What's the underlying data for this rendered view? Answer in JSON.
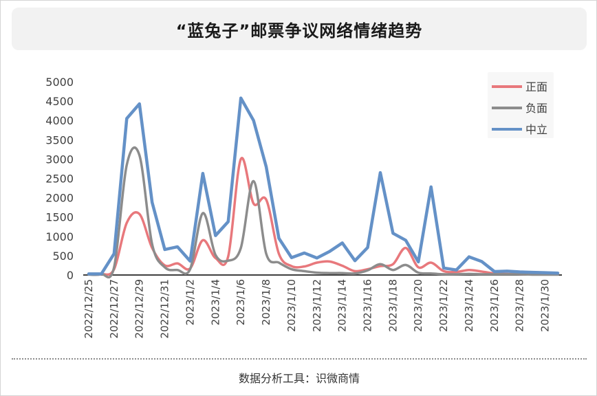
{
  "title": "“蓝兔子”邮票争议网络情绪趋势",
  "footer": "数据分析工具：识微商情",
  "chart_data": {
    "type": "line",
    "title": "“蓝兔子”邮票争议网络情绪趋势",
    "xlabel": "",
    "ylabel": "",
    "ylim": [
      0,
      5000
    ],
    "yticks": [
      0,
      500,
      1000,
      1500,
      2000,
      2500,
      3000,
      3500,
      4000,
      4500,
      5000
    ],
    "grid": false,
    "legend_position": "top-right",
    "x": [
      "2022/12/25",
      "2022/12/26",
      "2022/12/27",
      "2022/12/28",
      "2022/12/29",
      "2022/12/30",
      "2022/12/31",
      "2023/1/1",
      "2023/1/2",
      "2023/1/3",
      "2023/1/4",
      "2023/1/5",
      "2023/1/6",
      "2023/1/7",
      "2023/1/8",
      "2023/1/9",
      "2023/1/10",
      "2023/1/11",
      "2023/1/12",
      "2023/1/13",
      "2023/1/14",
      "2023/1/15",
      "2023/1/16",
      "2023/1/17",
      "2023/1/18",
      "2023/1/19",
      "2023/1/20",
      "2023/1/21",
      "2023/1/22",
      "2023/1/23",
      "2023/1/24",
      "2023/1/25",
      "2023/1/26",
      "2023/1/27",
      "2023/1/28",
      "2023/1/29",
      "2023/1/30",
      "2023/1/31"
    ],
    "xtick_labels": [
      "2022/12/25",
      "2022/12/27",
      "2022/12/29",
      "2022/12/31",
      "2023/1/2",
      "2023/1/4",
      "2023/1/6",
      "2023/1/8",
      "2023/1/10",
      "2023/1/12",
      "2023/1/14",
      "2023/1/16",
      "2023/1/18",
      "2023/1/20",
      "2023/1/22",
      "2023/1/24",
      "2023/1/26",
      "2023/1/28",
      "2023/1/30"
    ],
    "series": [
      {
        "name": "正面",
        "color": "#e8787c",
        "smooth": true,
        "values": [
          20,
          20,
          150,
          1350,
          1580,
          700,
          250,
          300,
          170,
          900,
          440,
          480,
          3000,
          1850,
          1950,
          550,
          230,
          220,
          320,
          350,
          240,
          100,
          150,
          230,
          280,
          700,
          200,
          320,
          100,
          80,
          130,
          90,
          40,
          30,
          20,
          20,
          20,
          20
        ]
      },
      {
        "name": "负面",
        "color": "#8c8c8c",
        "smooth": true,
        "values": [
          10,
          20,
          200,
          2850,
          3100,
          800,
          200,
          130,
          150,
          1600,
          520,
          370,
          700,
          2430,
          550,
          320,
          150,
          100,
          60,
          50,
          50,
          40,
          120,
          280,
          130,
          260,
          60,
          40,
          20,
          20,
          30,
          20,
          20,
          20,
          20,
          10,
          10,
          10
        ]
      },
      {
        "name": "中立",
        "color": "#6491c7",
        "smooth": false,
        "values": [
          30,
          30,
          550,
          4050,
          4430,
          1880,
          660,
          730,
          360,
          2630,
          1020,
          1380,
          4580,
          4000,
          2800,
          950,
          450,
          570,
          440,
          610,
          830,
          370,
          710,
          2650,
          1080,
          900,
          340,
          2280,
          180,
          130,
          470,
          350,
          90,
          100,
          80,
          70,
          60,
          50
        ]
      }
    ]
  }
}
